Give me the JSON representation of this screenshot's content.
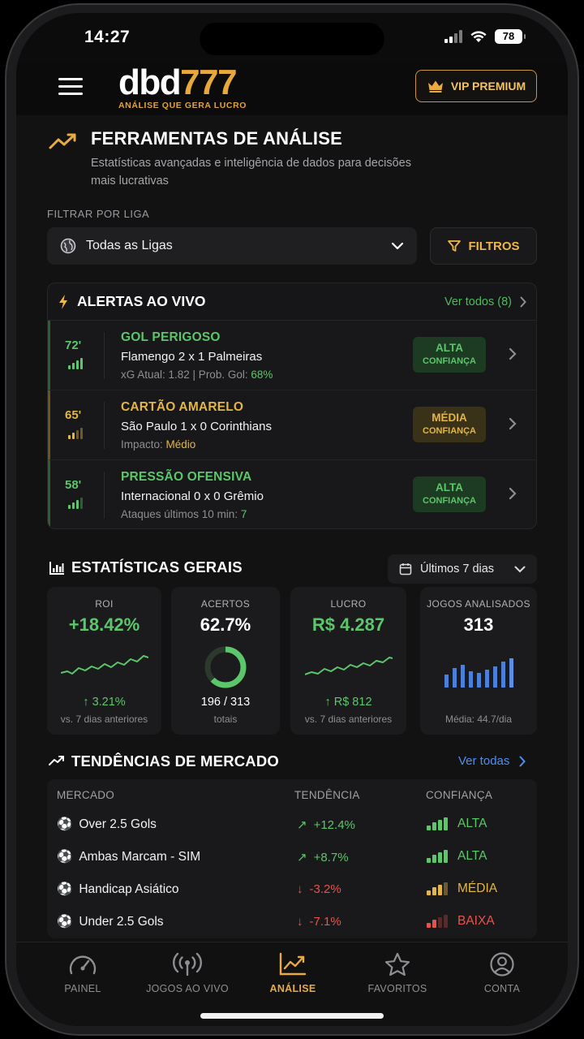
{
  "status": {
    "time": "14:27",
    "battery": "78"
  },
  "header": {
    "logo_white": "dbd",
    "logo_gold": "777",
    "logo_tagline": "ANÁLISE QUE GERA LUCRO",
    "vip_label": "VIP PREMIUM"
  },
  "hero": {
    "title": "FERRAMENTAS DE ANÁLISE",
    "description": "Estatísticas avançadas e inteligência de dados para decisões mais lucrativas"
  },
  "filter": {
    "label": "FILTRAR POR LIGA",
    "league_value": "Todas as Ligas",
    "filters_label": "FILTROS"
  },
  "alerts": {
    "title": "ALERTAS AO VIVO",
    "see_all": "Ver todos (8)",
    "items": [
      {
        "minute": "72'",
        "type": "GOL PERIGOSO",
        "match": "Flamengo 2 x 1 Palmeiras",
        "meta_prefix": "xG Atual: 1.82 | Prob. Gol: ",
        "meta_highlight": "68%",
        "confidence": "ALTA",
        "confidence_sub": "CONFIANÇA",
        "color": "#5cc66a"
      },
      {
        "minute": "65'",
        "type": "CARTÃO AMARELO",
        "match": "São Paulo 1 x 0 Corinthians",
        "meta_prefix": "Impacto: ",
        "meta_highlight": "Médio",
        "confidence": "MÉDIA",
        "confidence_sub": "CONFIANÇA",
        "color": "#e3b545"
      },
      {
        "minute": "58'",
        "type": "PRESSÃO OFENSIVA",
        "match": "Internacional 0 x 0 Grêmio",
        "meta_prefix": "Ataques últimos 10 min: ",
        "meta_highlight": "7",
        "confidence": "ALTA",
        "confidence_sub": "CONFIANÇA",
        "color": "#5cc66a"
      }
    ]
  },
  "stats": {
    "title": "ESTATÍSTICAS GERAIS",
    "period": "Últimos 7 dias",
    "cards": {
      "roi": {
        "label": "ROI",
        "value": "+18.42%",
        "sub": "↑ 3.21%",
        "note": "vs. 7 dias anteriores"
      },
      "acertos": {
        "label": "ACERTOS",
        "value": "62.7%",
        "sub": "196 / 313",
        "note": "totais",
        "fraction": 0.627
      },
      "lucro": {
        "label": "LUCRO",
        "value": "R$ 4.287",
        "sub": "↑ R$ 812",
        "note": "vs. 7 dias anteriores"
      },
      "jogos": {
        "label": "JOGOS ANALISADOS",
        "value": "313",
        "note": "Média: 44.7/dia"
      }
    }
  },
  "trends": {
    "title": "TENDÊNCIAS DE MERCADO",
    "see_all": "Ver todas",
    "headers": {
      "market": "MERCADO",
      "trend": "TENDÊNCIA",
      "confidence": "CONFIANÇA"
    },
    "rows": [
      {
        "market": "Over 2.5 Gols",
        "trend": "+12.4%",
        "dir": "up",
        "confidence": "ALTA",
        "color": "#5cc66a"
      },
      {
        "market": "Ambas Marcam - SIM",
        "trend": "+8.7%",
        "dir": "up",
        "confidence": "ALTA",
        "color": "#5cc66a"
      },
      {
        "market": "Handicap Asiático",
        "trend": "-3.2%",
        "dir": "down",
        "confidence": "MÉDIA",
        "color": "#e3b545"
      },
      {
        "market": "Under 2.5 Gols",
        "trend": "-7.1%",
        "dir": "down",
        "confidence": "BAIXA",
        "color": "#e5534b"
      }
    ]
  },
  "tabs": [
    {
      "label": "PAINEL",
      "icon": "gauge-icon"
    },
    {
      "label": "JOGOS AO VIVO",
      "icon": "broadcast-icon"
    },
    {
      "label": "ANÁLISE",
      "icon": "chart-line-icon",
      "active": true
    },
    {
      "label": "FAVORITOS",
      "icon": "star-icon"
    },
    {
      "label": "CONTA",
      "icon": "user-circle-icon"
    }
  ],
  "colors": {
    "accent_gold": "#e9ab3f",
    "positive": "#5cc66a",
    "warning": "#e3b545",
    "negative": "#e5534b",
    "link": "#4f8ff1"
  }
}
